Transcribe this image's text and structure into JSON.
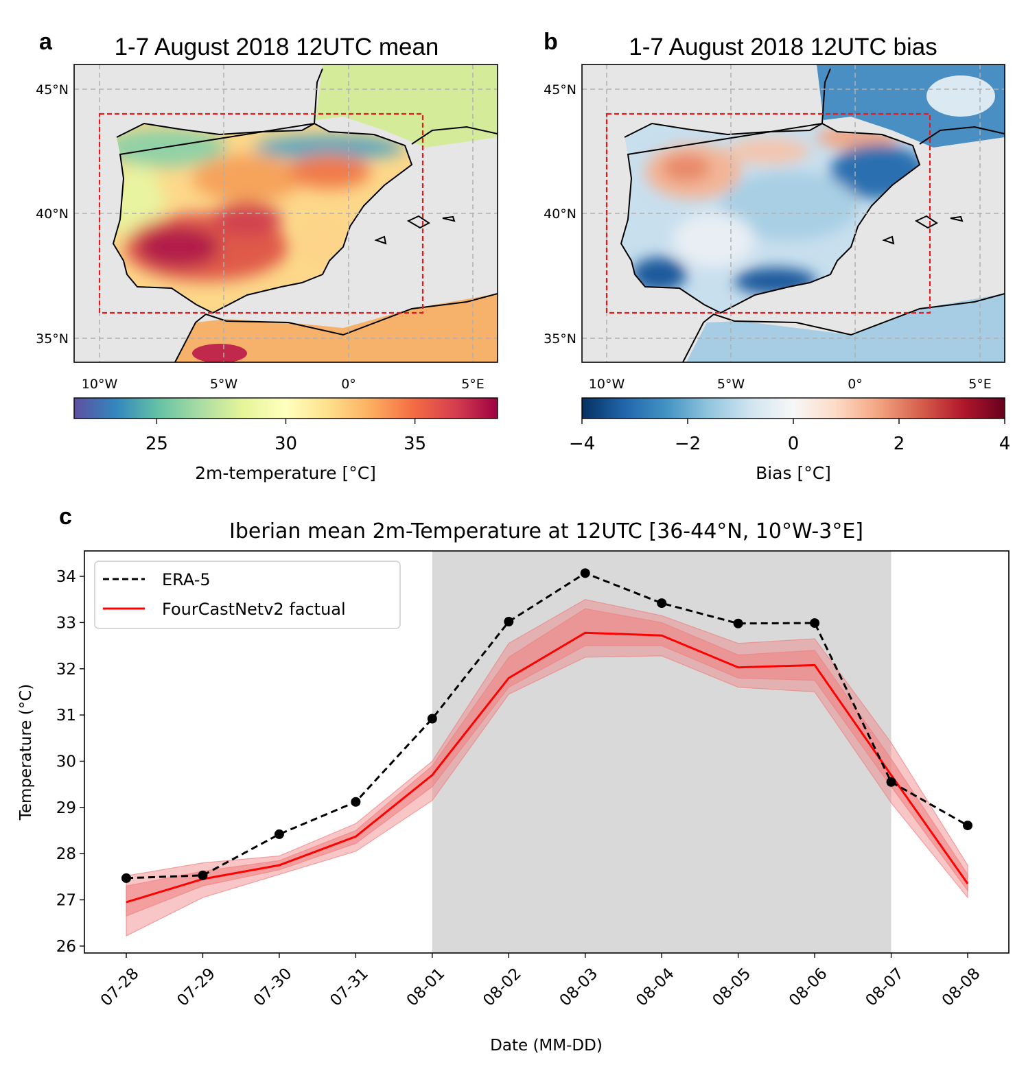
{
  "panel_a": {
    "letter": "a",
    "title": "1-7 August 2018 12UTC mean",
    "lat_ticks": [
      "45°N",
      "40°N",
      "35°N"
    ],
    "lon_ticks": [
      "10°W",
      "5°W",
      "0°",
      "5°E"
    ],
    "colorbar": {
      "label": "2m-temperature [°C]",
      "ticks": [
        "25",
        "30",
        "35"
      ],
      "range": [
        21.8,
        38.2
      ],
      "colormap": "Spectral_r"
    }
  },
  "panel_b": {
    "letter": "b",
    "title": "1-7 August 2018 12UTC bias",
    "lat_ticks": [
      "45°N",
      "40°N",
      "35°N"
    ],
    "lon_ticks": [
      "10°W",
      "5°W",
      "0°",
      "5°E"
    ],
    "colorbar": {
      "label": "Bias [°C]",
      "ticks": [
        "−4",
        "−2",
        "0",
        "2",
        "4"
      ],
      "range": [
        -4,
        4
      ],
      "colormap": "RdBu_r"
    }
  },
  "panel_c": {
    "letter": "c"
  },
  "colors": {
    "era5": "#000000",
    "fourcastnet": "#ff0000",
    "band": "#f08080",
    "shade": "#d9d9d9",
    "box": "#e8191b",
    "missing": "#e6e6e6"
  },
  "chart_data": {
    "type": "line",
    "title": "Iberian mean 2m-Temperature at 12UTC [36-44°N, 10°W-3°E]",
    "xlabel": "Date (MM-DD)",
    "ylabel": "Temperature (°C)",
    "categories": [
      "07-28",
      "07-29",
      "07-30",
      "07-31",
      "08-01",
      "08-02",
      "08-03",
      "08-04",
      "08-05",
      "08-06",
      "08-07",
      "08-08"
    ],
    "yticks": [
      "26",
      "27",
      "28",
      "29",
      "30",
      "31",
      "32",
      "33",
      "34"
    ],
    "ylim": [
      25.85,
      34.55
    ],
    "shaded_period": [
      "08-01",
      "08-07"
    ],
    "series": [
      {
        "name": "ERA-5",
        "style": "dashed-markers",
        "values": [
          27.47,
          27.53,
          28.42,
          29.12,
          30.92,
          33.02,
          34.07,
          33.42,
          32.98,
          32.99,
          29.55,
          28.61
        ]
      },
      {
        "name": "FourCastNetv2 factual",
        "style": "solid",
        "values": [
          26.95,
          27.45,
          27.75,
          28.37,
          29.7,
          31.8,
          32.78,
          32.72,
          32.03,
          32.08,
          29.7,
          27.35
        ],
        "inner_band_low": [
          26.65,
          27.3,
          27.65,
          28.22,
          29.45,
          31.6,
          32.5,
          32.5,
          31.8,
          31.75,
          29.45,
          27.2
        ],
        "inner_band_high": [
          27.3,
          27.62,
          27.85,
          28.5,
          29.9,
          32.25,
          33.3,
          33.0,
          32.3,
          32.4,
          30.05,
          27.55
        ],
        "outer_band_low": [
          26.22,
          27.05,
          27.55,
          28.05,
          29.15,
          31.45,
          32.25,
          32.28,
          31.6,
          31.5,
          29.1,
          27.05
        ],
        "outer_band_high": [
          27.52,
          27.8,
          27.95,
          28.65,
          30.0,
          32.55,
          33.5,
          33.15,
          32.55,
          32.65,
          30.4,
          27.75
        ]
      }
    ]
  }
}
